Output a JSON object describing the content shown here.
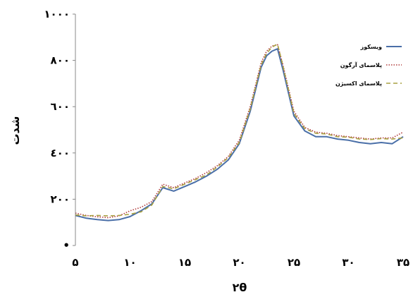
{
  "chart_data": {
    "type": "line",
    "xlabel": "۲θ",
    "ylabel": "شدت",
    "xlim": [
      5,
      35
    ],
    "ylim": [
      0,
      1000
    ],
    "x_ticks": [
      {
        "value": 5,
        "label": "۵"
      },
      {
        "value": 10,
        "label": "۱۰"
      },
      {
        "value": 15,
        "label": "۱۵"
      },
      {
        "value": 20,
        "label": "۲۰"
      },
      {
        "value": 25,
        "label": "۲۵"
      },
      {
        "value": 30,
        "label": "۳۰"
      },
      {
        "value": 35,
        "label": "۳۵"
      }
    ],
    "y_ticks": [
      {
        "value": 0,
        "label": "•"
      },
      {
        "value": 200,
        "label": "۲۰۰"
      },
      {
        "value": 400,
        "label": "٤۰۰"
      },
      {
        "value": 600,
        "label": "٦۰۰"
      },
      {
        "value": 800,
        "label": "۸۰۰"
      },
      {
        "value": 1000,
        "label": "۱۰۰۰"
      }
    ],
    "legend_position": "top-right",
    "series": [
      {
        "name": "ویسکوز",
        "color": "#4a6fa8",
        "style": "solid",
        "x": [
          5,
          6,
          7,
          8,
          9,
          10,
          11,
          12,
          13,
          14,
          15,
          16,
          17,
          18,
          19,
          20,
          21,
          22,
          22.5,
          23,
          23.5,
          24,
          25,
          26,
          27,
          28,
          29,
          30,
          31,
          32,
          33,
          34,
          35
        ],
        "y": [
          130,
          118,
          112,
          108,
          112,
          125,
          150,
          180,
          250,
          235,
          255,
          275,
          300,
          330,
          370,
          440,
          580,
          770,
          820,
          840,
          850,
          760,
          560,
          495,
          470,
          470,
          460,
          455,
          445,
          440,
          445,
          440,
          470
        ]
      },
      {
        "name": "پلاسمای آرگون",
        "color": "#b03a3a",
        "style": "dotted",
        "x": [
          5,
          6,
          7,
          8,
          9,
          10,
          11,
          12,
          13,
          14,
          15,
          16,
          17,
          18,
          19,
          20,
          21,
          22,
          22.5,
          23,
          23.5,
          24,
          25,
          26,
          27,
          28,
          29,
          30,
          31,
          32,
          33,
          34,
          35
        ],
        "y": [
          140,
          130,
          124,
          120,
          128,
          150,
          165,
          190,
          265,
          250,
          270,
          290,
          315,
          345,
          385,
          455,
          600,
          790,
          840,
          862,
          868,
          780,
          580,
          510,
          490,
          485,
          475,
          470,
          465,
          460,
          465,
          465,
          490
        ]
      },
      {
        "name": "پلاسمای اکسیژن",
        "color": "#a8a040",
        "style": "dashed",
        "x": [
          5,
          6,
          7,
          8,
          9,
          10,
          11,
          12,
          13,
          14,
          15,
          16,
          17,
          18,
          19,
          20,
          21,
          22,
          22.5,
          23,
          23.5,
          24,
          25,
          26,
          27,
          28,
          29,
          30,
          31,
          32,
          33,
          34,
          35
        ],
        "y": [
          132,
          128,
          130,
          128,
          130,
          135,
          145,
          175,
          255,
          245,
          265,
          285,
          305,
          340,
          380,
          445,
          590,
          780,
          830,
          858,
          870,
          775,
          570,
          505,
          485,
          482,
          470,
          468,
          460,
          458,
          462,
          460,
          465
        ]
      }
    ]
  }
}
